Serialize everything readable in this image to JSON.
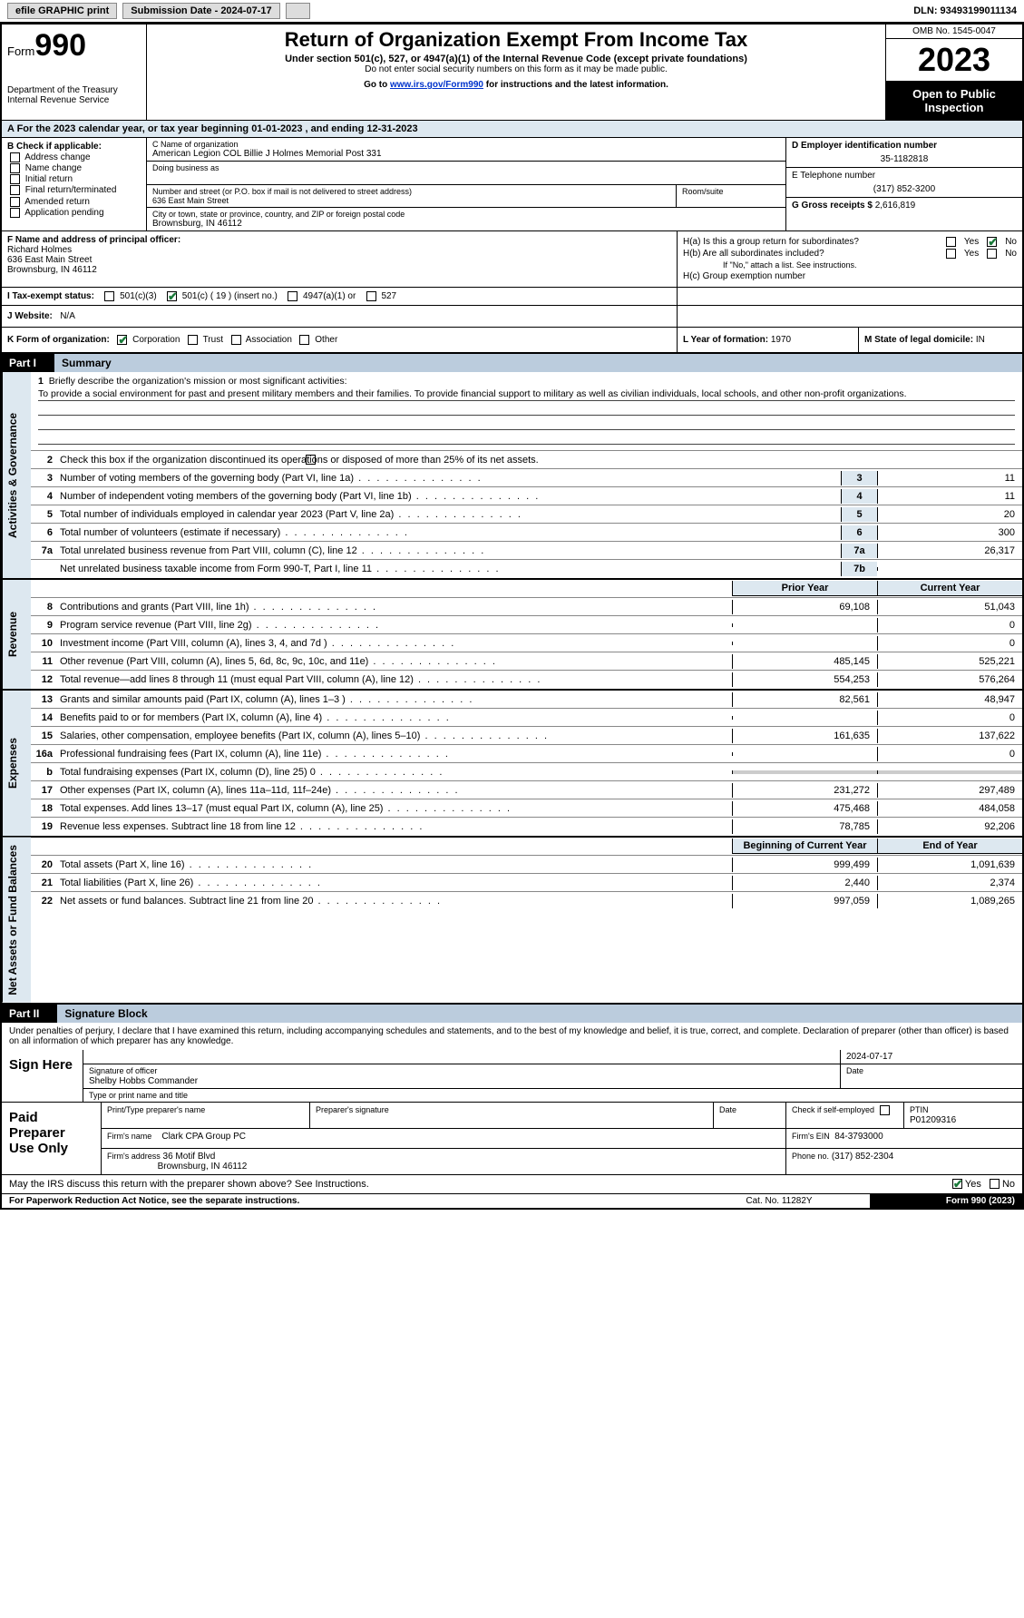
{
  "topbar": {
    "efile": "efile GRAPHIC print",
    "sub_label": "Submission Date - 2024-07-17",
    "dln": "DLN: 93493199011134"
  },
  "header": {
    "form_word": "Form",
    "form_num": "990",
    "title": "Return of Organization Exempt From Income Tax",
    "subtitle": "Under section 501(c), 527, or 4947(a)(1) of the Internal Revenue Code (except private foundations)",
    "warn": "Do not enter social security numbers on this form as it may be made public.",
    "goto_pre": "Go to ",
    "goto_link": "www.irs.gov/Form990",
    "goto_post": " for instructions and the latest information.",
    "dept": "Department of the Treasury",
    "irs": "Internal Revenue Service",
    "omb": "OMB No. 1545-0047",
    "year": "2023",
    "open": "Open to Public Inspection"
  },
  "row_a": "A   For the 2023 calendar year, or tax year beginning 01-01-2023    , and ending 12-31-2023",
  "col_b": {
    "label": "B Check if applicable:",
    "items": [
      "Address change",
      "Name change",
      "Initial return",
      "Final return/terminated",
      "Amended return",
      "Application pending"
    ]
  },
  "col_c": {
    "name_lbl": "C Name of organization",
    "name": "American Legion COL Billie J Holmes Memorial Post 331",
    "dba_lbl": "Doing business as",
    "addr_lbl": "Number and street (or P.O. box if mail is not delivered to street address)",
    "addr": "636 East Main Street",
    "room_lbl": "Room/suite",
    "city_lbl": "City or town, state or province, country, and ZIP or foreign postal code",
    "city": "Brownsburg, IN  46112"
  },
  "col_d": {
    "ein_lbl": "D Employer identification number",
    "ein": "35-1182818",
    "tel_lbl": "E Telephone number",
    "tel": "(317) 852-3200",
    "gross_lbl": "G Gross receipts $",
    "gross": "2,616,819"
  },
  "col_f": {
    "lbl": "F  Name and address of principal officer:",
    "name": "Richard Holmes",
    "addr1": "636 East Main Street",
    "addr2": "Brownsburg, IN  46112"
  },
  "col_h": {
    "ha": "H(a)  Is this a group return for subordinates?",
    "hb": "H(b)  Are all subordinates included?",
    "hb_note": "If \"No,\" attach a list. See instructions.",
    "hc": "H(c)  Group exemption number",
    "ha_no_checked": true
  },
  "tax_status": {
    "lbl": "I     Tax-exempt status:",
    "opts": [
      "501(c)(3)",
      "501(c) ( 19 ) (insert no.)",
      "4947(a)(1) or",
      "527"
    ],
    "checked_idx": 1
  },
  "website": {
    "lbl": "J   Website:",
    "val": "N/A"
  },
  "form_org": {
    "lbl": "K Form of organization:",
    "opts": [
      "Corporation",
      "Trust",
      "Association",
      "Other"
    ],
    "checked_idx": 0
  },
  "year_formed": {
    "lbl": "L Year of formation:",
    "val": "1970"
  },
  "domicile": {
    "lbl": "M State of legal domicile:",
    "val": "IN"
  },
  "part1_label": "Part I",
  "part1_title": "Summary",
  "side_labels": {
    "gov": "Activities & Governance",
    "rev": "Revenue",
    "exp": "Expenses",
    "net": "Net Assets or Fund Balances"
  },
  "mission": {
    "lbl": "Briefly describe the organization's mission or most significant activities:",
    "text": "To provide a social environment for past and present military members and their families. To provide financial support to military as well as civilian individuals, local schools, and other non-profit organizations."
  },
  "line2": "Check this box        if the organization discontinued its operations or disposed of more than 25% of its net assets.",
  "gov_lines": [
    {
      "n": "3",
      "d": "Number of voting members of the governing body (Part VI, line 1a)",
      "box": "3",
      "v": "11"
    },
    {
      "n": "4",
      "d": "Number of independent voting members of the governing body (Part VI, line 1b)",
      "box": "4",
      "v": "11"
    },
    {
      "n": "5",
      "d": "Total number of individuals employed in calendar year 2023 (Part V, line 2a)",
      "box": "5",
      "v": "20"
    },
    {
      "n": "6",
      "d": "Total number of volunteers (estimate if necessary)",
      "box": "6",
      "v": "300"
    },
    {
      "n": "7a",
      "d": "Total unrelated business revenue from Part VIII, column (C), line 12",
      "box": "7a",
      "v": "26,317"
    },
    {
      "n": "",
      "d": "Net unrelated business taxable income from Form 990-T, Part I, line 11",
      "box": "7b",
      "v": ""
    }
  ],
  "year_hdr": {
    "prior": "Prior Year",
    "current": "Current Year",
    "begin": "Beginning of Current Year",
    "end": "End of Year"
  },
  "rev_lines": [
    {
      "n": "8",
      "d": "Contributions and grants (Part VIII, line 1h)",
      "p": "69,108",
      "c": "51,043"
    },
    {
      "n": "9",
      "d": "Program service revenue (Part VIII, line 2g)",
      "p": "",
      "c": "0"
    },
    {
      "n": "10",
      "d": "Investment income (Part VIII, column (A), lines 3, 4, and 7d )",
      "p": "",
      "c": "0"
    },
    {
      "n": "11",
      "d": "Other revenue (Part VIII, column (A), lines 5, 6d, 8c, 9c, 10c, and 11e)",
      "p": "485,145",
      "c": "525,221"
    },
    {
      "n": "12",
      "d": "Total revenue—add lines 8 through 11 (must equal Part VIII, column (A), line 12)",
      "p": "554,253",
      "c": "576,264"
    }
  ],
  "exp_lines": [
    {
      "n": "13",
      "d": "Grants and similar amounts paid (Part IX, column (A), lines 1–3 )",
      "p": "82,561",
      "c": "48,947"
    },
    {
      "n": "14",
      "d": "Benefits paid to or for members (Part IX, column (A), line 4)",
      "p": "",
      "c": "0"
    },
    {
      "n": "15",
      "d": "Salaries, other compensation, employee benefits (Part IX, column (A), lines 5–10)",
      "p": "161,635",
      "c": "137,622"
    },
    {
      "n": "16a",
      "d": "Professional fundraising fees (Part IX, column (A), line 11e)",
      "p": "",
      "c": "0"
    },
    {
      "n": "b",
      "d": "Total fundraising expenses (Part IX, column (D), line 25) 0",
      "p": "shaded",
      "c": "shaded"
    },
    {
      "n": "17",
      "d": "Other expenses (Part IX, column (A), lines 11a–11d, 11f–24e)",
      "p": "231,272",
      "c": "297,489"
    },
    {
      "n": "18",
      "d": "Total expenses. Add lines 13–17 (must equal Part IX, column (A), line 25)",
      "p": "475,468",
      "c": "484,058"
    },
    {
      "n": "19",
      "d": "Revenue less expenses. Subtract line 18 from line 12",
      "p": "78,785",
      "c": "92,206"
    }
  ],
  "net_lines": [
    {
      "n": "20",
      "d": "Total assets (Part X, line 16)",
      "p": "999,499",
      "c": "1,091,639"
    },
    {
      "n": "21",
      "d": "Total liabilities (Part X, line 26)",
      "p": "2,440",
      "c": "2,374"
    },
    {
      "n": "22",
      "d": "Net assets or fund balances. Subtract line 21 from line 20",
      "p": "997,059",
      "c": "1,089,265"
    }
  ],
  "part2_label": "Part II",
  "part2_title": "Signature Block",
  "sig": {
    "perjury": "Under penalties of perjury, I declare that I have examined this return, including accompanying schedules and statements, and to the best of my knowledge and belief, it is true, correct, and complete. Declaration of preparer (other than officer) is based on all information of which preparer has any knowledge.",
    "sign_here": "Sign Here",
    "date": "2024-07-17",
    "sig_of_officer": "Signature of officer",
    "officer_name": "Shelby Hobbs  Commander",
    "type_name": "Type or print name and title"
  },
  "paid": {
    "paid_here": "Paid Preparer Use Only",
    "name_lbl": "Print/Type preparer's name",
    "sig_lbl": "Preparer's signature",
    "date_lbl": "Date",
    "check_lbl": "Check         if self-employed",
    "ptin_lbl": "PTIN",
    "ptin": "P01209316",
    "firm_name_lbl": "Firm's name",
    "firm_name": "Clark CPA Group PC",
    "firm_ein_lbl": "Firm's EIN",
    "firm_ein": "84-3793000",
    "firm_addr_lbl": "Firm's address",
    "firm_addr": "36 Motif Blvd",
    "firm_city": "Brownsburg, IN  46112",
    "phone_lbl": "Phone no.",
    "phone": "(317) 852-2304"
  },
  "discuss": {
    "q": "May the IRS discuss this return with the preparer shown above? See Instructions.",
    "yes_checked": true
  },
  "footer": {
    "l": "For Paperwork Reduction Act Notice, see the separate instructions.",
    "m": "Cat. No. 11282Y",
    "r": "Form 990 (2023)"
  }
}
